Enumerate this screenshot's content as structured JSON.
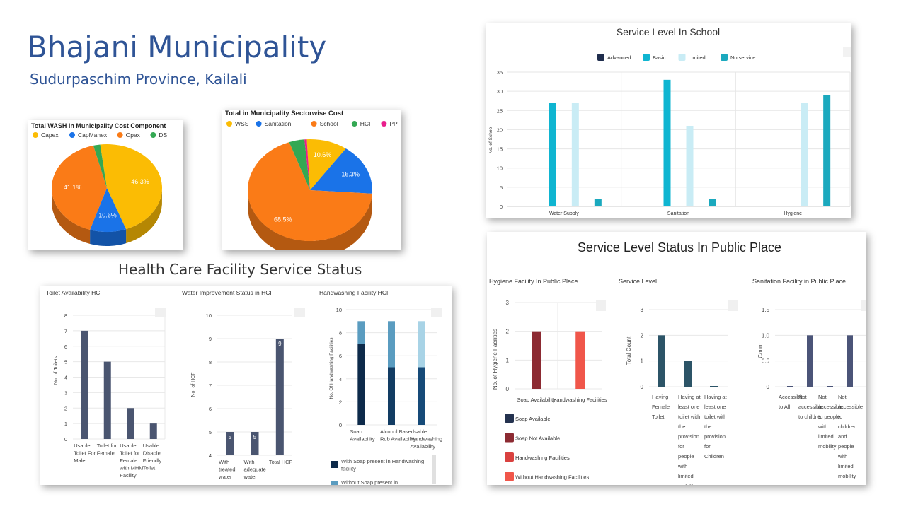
{
  "page": {
    "title": "Bhajani Municipality",
    "subtitle": "Sudurpaschim Province, Kailali",
    "hcf_section_title": "Health Care Facility Service Status"
  },
  "chart_data": [
    {
      "id": "wash_cost",
      "type": "pie",
      "title": "Total WASH in Municipality Cost Component",
      "legend": [
        {
          "name": "Capex",
          "color": "#fbbc04"
        },
        {
          "name": "CapManex",
          "color": "#1a73e8"
        },
        {
          "name": "Opex",
          "color": "#fa7b17"
        },
        {
          "name": "DS",
          "color": "#34a853"
        }
      ],
      "slices": [
        {
          "name": "Capex",
          "value": 46.3,
          "color": "#fbbc04",
          "label": "46.3%"
        },
        {
          "name": "CapManex",
          "value": 10.6,
          "color": "#1a73e8",
          "label": "10.6%"
        },
        {
          "name": "Opex",
          "value": 41.1,
          "color": "#fa7b17",
          "label": "41.1%"
        },
        {
          "name": "DS",
          "value": 2.0,
          "color": "#34a853",
          "label": ""
        }
      ]
    },
    {
      "id": "sector_cost",
      "type": "pie",
      "title": "Total in Municipality Sectorwise Cost",
      "legend": [
        {
          "name": "WSS",
          "color": "#fbbc04"
        },
        {
          "name": "Sanitation",
          "color": "#1a73e8"
        },
        {
          "name": "School",
          "color": "#fa7b17"
        },
        {
          "name": "HCF",
          "color": "#34a853"
        },
        {
          "name": "PP",
          "color": "#e91e8c"
        }
      ],
      "slices": [
        {
          "name": "WSS",
          "value": 10.6,
          "color": "#fbbc04",
          "label": "10.6%"
        },
        {
          "name": "Sanitation",
          "value": 16.3,
          "color": "#1a73e8",
          "label": "16.3%"
        },
        {
          "name": "School",
          "value": 68.5,
          "color": "#fa7b17",
          "label": "68.5%"
        },
        {
          "name": "HCF",
          "value": 4.0,
          "color": "#34a853",
          "label": ""
        },
        {
          "name": "PP",
          "value": 0.6,
          "color": "#e91e8c",
          "label": ""
        }
      ]
    },
    {
      "id": "school",
      "type": "bar",
      "title": "Service Level In School",
      "ylabel": "No. of School",
      "ylim": [
        0,
        35
      ],
      "yticks": [
        0,
        5,
        10,
        15,
        20,
        25,
        30,
        35
      ],
      "categories": [
        "Water Supply",
        "Sanitation",
        "Hygiene"
      ],
      "series": [
        {
          "name": "Advanced",
          "color": "#1f2d4d",
          "values": [
            0,
            0,
            0
          ]
        },
        {
          "name": "Basic",
          "color": "#0fb5d1",
          "values": [
            27,
            33,
            0
          ]
        },
        {
          "name": "Limited",
          "color": "#c9ecf5",
          "values": [
            27,
            21,
            27
          ]
        },
        {
          "name": "No service",
          "color": "#1ba9be",
          "values": [
            2,
            2,
            29
          ]
        }
      ]
    },
    {
      "id": "toilet_hcf",
      "type": "bar",
      "title": "Toilet Availability HCF",
      "ylabel": "No. of Toilets",
      "ylim": [
        0,
        8
      ],
      "yticks": [
        0,
        1,
        2,
        3,
        4,
        5,
        6,
        7,
        8
      ],
      "categories": [
        "Usable Toilet For Male",
        "Toilet for Female",
        "Usable Toilet for Female with MHM Facility",
        "Usable Disable Friendly Toilet"
      ],
      "values": [
        7,
        5,
        2,
        1
      ],
      "color": "#4a5570"
    },
    {
      "id": "water_hcf",
      "type": "bar",
      "title": "Water Improvement Status in HCF",
      "ylabel": "No. of HCF",
      "ylim": [
        4,
        10
      ],
      "yticks": [
        4,
        5,
        6,
        7,
        8,
        9,
        10
      ],
      "categories": [
        "With treated water",
        "With adequate water",
        "Total HCF"
      ],
      "values": [
        5,
        5,
        9
      ],
      "labels": [
        "5",
        "5",
        "9"
      ],
      "color": "#4a5570"
    },
    {
      "id": "handwash_hcf",
      "type": "stacked-bar",
      "title": "Handwashing Facility HCF",
      "ylabel": "No. Of Handwashing Facilities",
      "ylim": [
        0,
        10
      ],
      "yticks": [
        0,
        2,
        4,
        6,
        8,
        10
      ],
      "categories": [
        "Soap Availability",
        "Alcohol Based Rub Availability",
        "Usable Handwashing Availability"
      ],
      "series": [
        {
          "name": "With Soap present in Handwashing facility",
          "colors": [
            "#0d2a4a",
            "#123c63",
            "#164a78"
          ],
          "values": [
            7,
            5,
            5
          ]
        },
        {
          "name": "Without Soap present in",
          "colors": [
            "#5a9cc0",
            "#5a9cc0",
            "#a8d3e6"
          ],
          "values": [
            2,
            4,
            4
          ]
        }
      ]
    },
    {
      "id": "hygiene_pp",
      "type": "bar",
      "title": "Hygiene Facility In Public Place",
      "ylabel": "No. of Hygiene Facilities",
      "ylim": [
        0,
        3
      ],
      "yticks": [
        0,
        1,
        2,
        3
      ],
      "categories": [
        "Soap Availability",
        "Handwashing Facilities"
      ],
      "series": [
        {
          "name": "Soap Available",
          "color": "#24324f",
          "values": [
            0,
            0
          ]
        },
        {
          "name": "Soap Not Available",
          "color": "#8c2a32",
          "values": [
            2,
            0
          ]
        },
        {
          "name": "Handwashing Facilities",
          "color": "#d9413f",
          "values": [
            0,
            0
          ]
        },
        {
          "name": "Without Handwashing Facilities",
          "color": "#f0564a",
          "values": [
            0,
            2
          ]
        }
      ]
    },
    {
      "id": "service_pp",
      "type": "bar",
      "title": "Service Level",
      "ylabel": "Total Count",
      "ylim": [
        0,
        3
      ],
      "yticks": [
        0,
        1,
        2,
        3
      ],
      "categories": [
        "Having Female Toilet",
        "Having at least one toilet with the provision for people with limited mobility",
        "Having at least one toilet with the provision for Children"
      ],
      "values": [
        2,
        1,
        0
      ],
      "color": "#2c5467"
    },
    {
      "id": "sanitation_pp",
      "type": "bar",
      "title": "Sanitation Facility in Public Place",
      "ylabel": "Count",
      "ylim": [
        0,
        1.5
      ],
      "yticks": [
        0,
        0.5,
        1.0,
        1.5
      ],
      "yticklabels": [
        "0",
        "0.5",
        "1.0",
        "1.5"
      ],
      "categories": [
        "Accessible to All",
        "Not accessible to children",
        "Not accessible to people with limited mobility",
        "Not accessible to children and people with limited mobility"
      ],
      "values": [
        0,
        1,
        0,
        1
      ],
      "color": "#4b5478"
    }
  ],
  "pp_card_title": "Service Level Status In Public Place"
}
